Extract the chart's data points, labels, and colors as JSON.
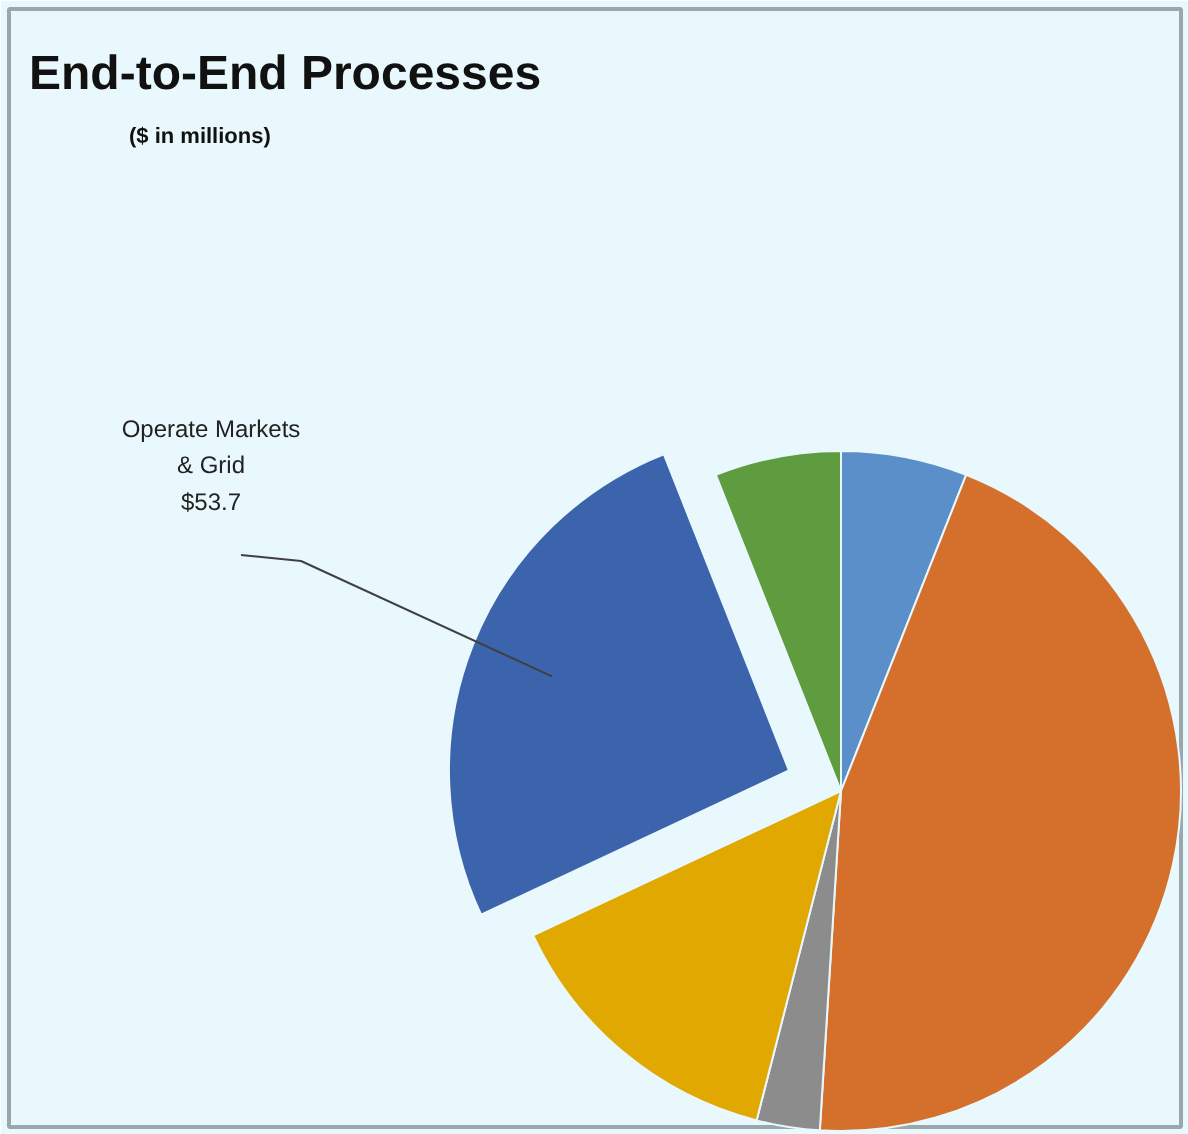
{
  "chart_data": {
    "type": "pie",
    "title": "End-to-End Processes",
    "subtitle": "($ in millions)",
    "categories": [
      null,
      null,
      null,
      null,
      "Operate Markets & Grid",
      null
    ],
    "values": [
      12.4,
      93,
      6.2,
      29,
      53.7,
      12.4
    ],
    "value_labels": [
      null,
      null,
      null,
      null,
      "$53.7",
      null
    ],
    "colors": [
      "#5b8fc9",
      "#d4702c",
      "#8c8c8c",
      "#e0a800",
      "#3c64ad",
      "#5f9b3f"
    ]
  }
}
